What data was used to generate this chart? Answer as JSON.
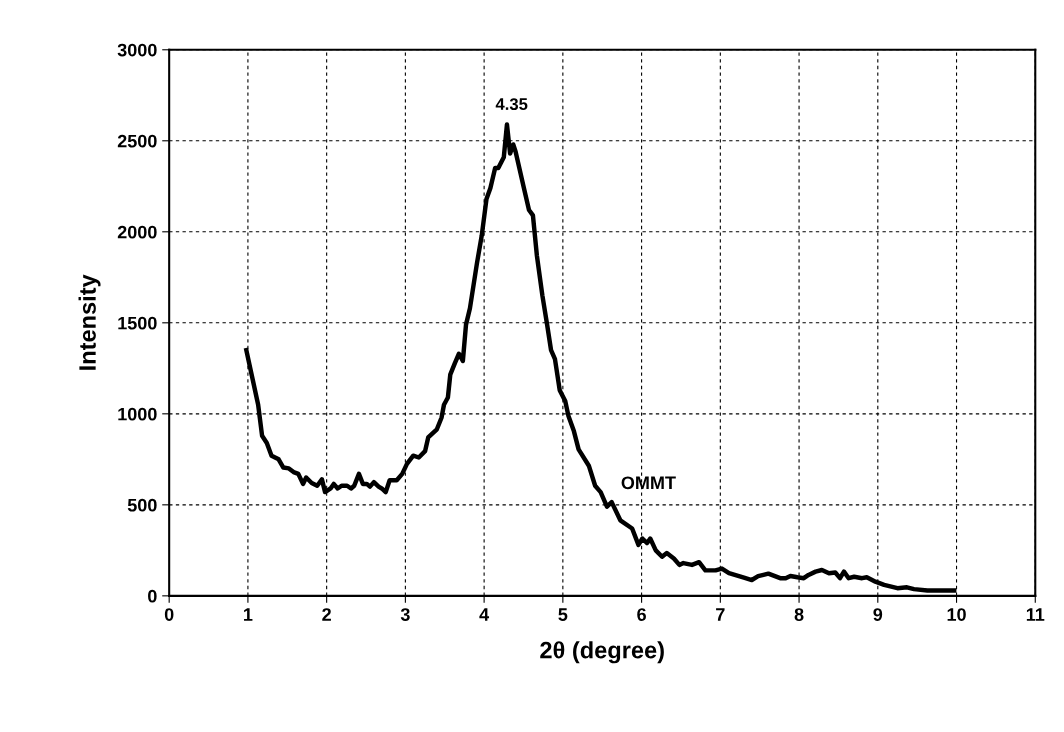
{
  "chart_data": {
    "type": "line",
    "xlabel": "2θ (degree)",
    "ylabel": "Intensity",
    "xlim": [
      0,
      11
    ],
    "xticks": [
      0,
      1,
      2,
      3,
      4,
      5,
      6,
      7,
      8,
      9,
      10,
      11
    ],
    "ylim": [
      0,
      3000
    ],
    "yticks": [
      0,
      500,
      1000,
      1500,
      2000,
      2500,
      3000
    ],
    "grid": true,
    "legend": false,
    "marker": "none",
    "line_style": "solid",
    "annotations": [
      {
        "text": "4.35",
        "x": 4.35,
        "y": 2590
      }
    ],
    "series": [
      {
        "name": "OMMT",
        "color": "#000000",
        "x": [
          0.98,
          1.13,
          1.18,
          1.24,
          1.3,
          1.39,
          1.45,
          1.52,
          1.58,
          1.64,
          1.7,
          1.74,
          1.81,
          1.88,
          1.94,
          1.98,
          2.05,
          2.09,
          2.14,
          2.19,
          2.26,
          2.31,
          2.35,
          2.41,
          2.46,
          2.51,
          2.55,
          2.6,
          2.66,
          2.7,
          2.75,
          2.8,
          2.89,
          2.96,
          3.02,
          3.1,
          3.17,
          3.25,
          3.29,
          3.4,
          3.46,
          3.49,
          3.54,
          3.57,
          3.63,
          3.68,
          3.73,
          3.77,
          3.82,
          3.91,
          3.97,
          4.03,
          4.08,
          4.14,
          4.18,
          4.25,
          4.29,
          4.33,
          4.37,
          4.4,
          4.5,
          4.57,
          4.62,
          4.67,
          4.74,
          4.8,
          4.85,
          4.9,
          4.96,
          5.03,
          5.07,
          5.14,
          5.2,
          5.33,
          5.41,
          5.48,
          5.56,
          5.62,
          5.73,
          5.88,
          5.96,
          6.01,
          6.07,
          6.11,
          6.18,
          6.26,
          6.32,
          6.41,
          6.48,
          6.53,
          6.64,
          6.73,
          6.81,
          6.94,
          7.02,
          7.11,
          7.3,
          7.4,
          7.48,
          7.61,
          7.76,
          7.83,
          7.89,
          7.98,
          8.06,
          8.12,
          8.21,
          8.29,
          8.38,
          8.46,
          8.52,
          8.57,
          8.63,
          8.7,
          8.8,
          8.86,
          8.97,
          9.08,
          9.25,
          9.37,
          9.46,
          9.63,
          9.84,
          9.97
        ],
        "values": [
          1350,
          1050,
          880,
          840,
          770,
          750,
          705,
          700,
          680,
          670,
          615,
          650,
          620,
          605,
          640,
          570,
          590,
          615,
          590,
          605,
          605,
          590,
          605,
          670,
          615,
          615,
          600,
          625,
          600,
          590,
          570,
          635,
          635,
          670,
          725,
          770,
          760,
          795,
          870,
          915,
          980,
          1050,
          1090,
          1215,
          1280,
          1330,
          1290,
          1490,
          1580,
          1830,
          1980,
          2180,
          2240,
          2350,
          2350,
          2410,
          2590,
          2430,
          2480,
          2440,
          2250,
          2120,
          2090,
          1870,
          1650,
          1490,
          1350,
          1300,
          1130,
          1070,
          990,
          905,
          805,
          715,
          605,
          570,
          490,
          515,
          415,
          370,
          280,
          315,
          290,
          315,
          250,
          215,
          235,
          205,
          170,
          180,
          170,
          185,
          140,
          140,
          150,
          125,
          100,
          87,
          108,
          122,
          97,
          97,
          109,
          102,
          97,
          115,
          133,
          142,
          124,
          128,
          97,
          133,
          97,
          105,
          97,
          102,
          78,
          60,
          42,
          47,
          37,
          29,
          29,
          29
        ]
      }
    ]
  }
}
